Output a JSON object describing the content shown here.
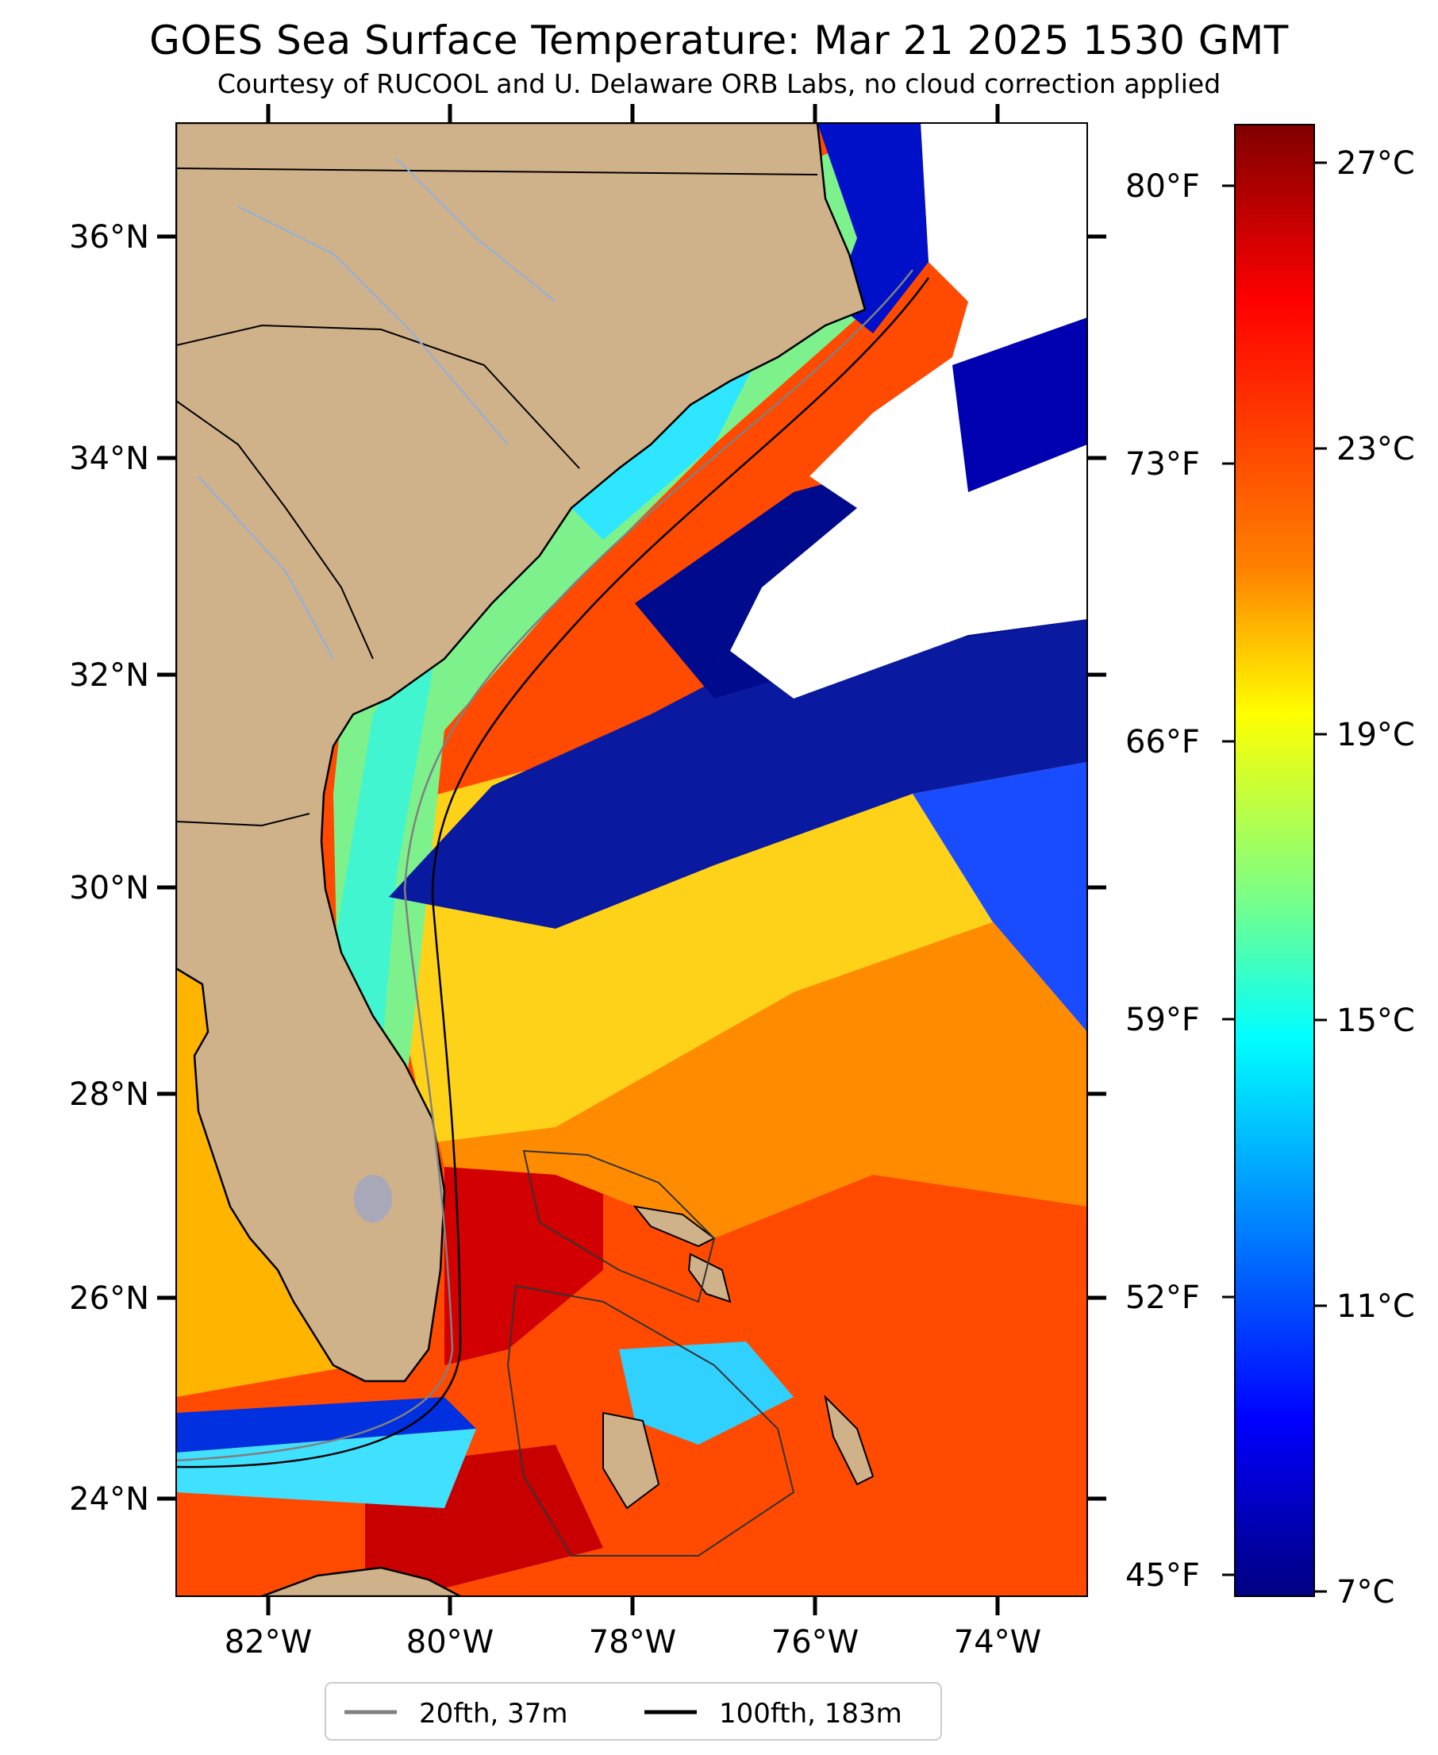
{
  "title": "GOES Sea Surface Temperature: Mar 21 2025 1530 GMT",
  "subtitle": "Courtesy of RUCOOL and U. Delaware ORB Labs, no cloud correction applied",
  "map": {
    "lat_labels": [
      "36°N",
      "34°N",
      "32°N",
      "30°N",
      "28°N",
      "26°N",
      "24°N"
    ],
    "lon_labels": [
      "82°W",
      "80°W",
      "78°W",
      "76°W",
      "74°W"
    ],
    "extent": {
      "lon_min": -83,
      "lon_max": -73,
      "lat_min": 23,
      "lat_max": 37
    },
    "land_color": "#cfb28a",
    "cloud_color": "#ffffff",
    "legend": [
      {
        "label": "20fth, 37m",
        "color": "#808080"
      },
      {
        "label": "100fth, 183m",
        "color": "#000000"
      }
    ]
  },
  "colorbar": {
    "celsius_labels": [
      "27°C",
      "23°C",
      "19°C",
      "15°C",
      "11°C",
      "7°C"
    ],
    "fahrenheit_labels": [
      "80°F",
      "73°F",
      "66°F",
      "59°F",
      "52°F",
      "45°F"
    ],
    "stops": [
      "#800000",
      "#ff0000",
      "#ff8000",
      "#ffff00",
      "#80ff80",
      "#00ffff",
      "#0080ff",
      "#0000ff",
      "#000080"
    ]
  }
}
